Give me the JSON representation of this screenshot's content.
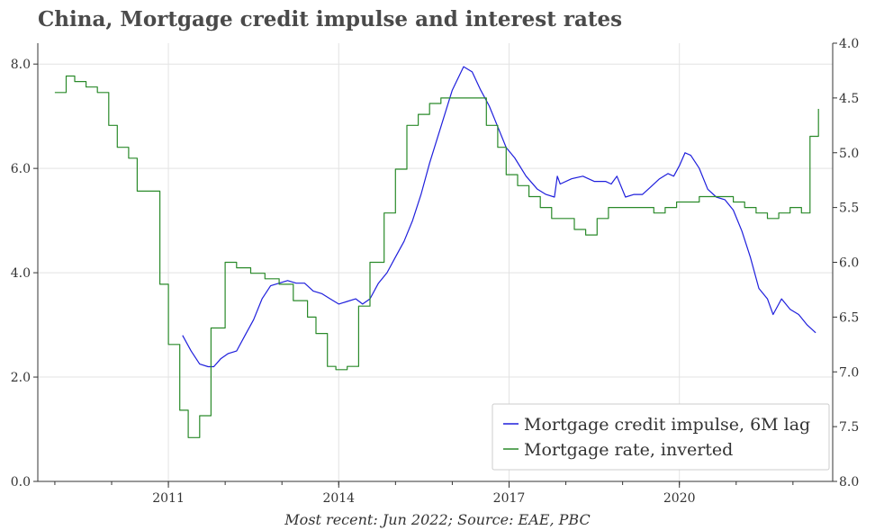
{
  "chart_data": {
    "type": "line",
    "title": "China, Mortgage credit impulse and interest rates",
    "source": "Most recent: Jun 2022; Source: EAE, PBC",
    "x_ticks": [
      "2011",
      "2014",
      "2017",
      "2020"
    ],
    "x_tick_years": [
      2011,
      2014,
      2017,
      2020
    ],
    "xlim": [
      2008.7,
      2022.7
    ],
    "y_left": {
      "ylim": [
        0,
        8.4
      ],
      "ticks": [
        0,
        2,
        4,
        6,
        8
      ],
      "tick_labels": [
        "0.0",
        "2.0",
        "4.0",
        "6.0",
        "8.0"
      ]
    },
    "y_right": {
      "ylim": [
        8.0,
        4.0
      ],
      "inverted": true,
      "ticks": [
        4.0,
        4.5,
        5.0,
        5.5,
        6.0,
        6.5,
        7.0,
        7.5,
        8.0
      ],
      "tick_labels": [
        "4.0",
        "4.5",
        "5.0",
        "5.5",
        "6.0",
        "6.5",
        "7.0",
        "7.5",
        "8.0"
      ]
    },
    "grid": true,
    "legend_position": "bottom-right",
    "series": [
      {
        "name": "Mortgage credit impulse, 6M lag",
        "axis": "left",
        "color": "#1f1fdc",
        "x": [
          2011.25,
          2011.4,
          2011.55,
          2011.7,
          2011.8,
          2011.92,
          2012.05,
          2012.2,
          2012.35,
          2012.5,
          2012.65,
          2012.8,
          2012.95,
          2013.1,
          2013.25,
          2013.4,
          2013.55,
          2013.7,
          2013.85,
          2014.0,
          2014.15,
          2014.3,
          2014.42,
          2014.55,
          2014.7,
          2014.85,
          2015.0,
          2015.15,
          2015.3,
          2015.45,
          2015.6,
          2015.8,
          2016.0,
          2016.2,
          2016.35,
          2016.5,
          2016.65,
          2016.8,
          2016.95,
          2017.1,
          2017.3,
          2017.5,
          2017.65,
          2017.8,
          2017.85,
          2017.9,
          2018.1,
          2018.3,
          2018.5,
          2018.7,
          2018.8,
          2018.9,
          2019.05,
          2019.2,
          2019.35,
          2019.5,
          2019.65,
          2019.8,
          2019.9,
          2020.0,
          2020.1,
          2020.2,
          2020.35,
          2020.5,
          2020.65,
          2020.8,
          2020.95,
          2021.1,
          2021.25,
          2021.4,
          2021.55,
          2021.65,
          2021.8,
          2021.95,
          2022.1,
          2022.25,
          2022.4
        ],
        "values": [
          2.8,
          2.5,
          2.25,
          2.2,
          2.2,
          2.35,
          2.45,
          2.5,
          2.8,
          3.1,
          3.5,
          3.75,
          3.8,
          3.85,
          3.8,
          3.8,
          3.65,
          3.6,
          3.5,
          3.4,
          3.45,
          3.5,
          3.4,
          3.5,
          3.8,
          4.0,
          4.3,
          4.6,
          5.0,
          5.5,
          6.1,
          6.8,
          7.5,
          7.95,
          7.85,
          7.5,
          7.2,
          6.8,
          6.4,
          6.2,
          5.85,
          5.6,
          5.5,
          5.45,
          5.85,
          5.7,
          5.8,
          5.85,
          5.75,
          5.75,
          5.7,
          5.85,
          5.45,
          5.5,
          5.5,
          5.65,
          5.8,
          5.9,
          5.85,
          6.05,
          6.3,
          6.25,
          6.0,
          5.6,
          5.45,
          5.4,
          5.2,
          4.8,
          4.3,
          3.7,
          3.5,
          3.2,
          3.5,
          3.3,
          3.2,
          3.0,
          2.85
        ],
        "values_note": ""
      },
      {
        "name": "Mortgage rate, inverted",
        "axis": "right",
        "color": "#2a8a2a",
        "step": true,
        "x": [
          2009.0,
          2009.2,
          2009.35,
          2009.55,
          2009.75,
          2009.95,
          2010.1,
          2010.3,
          2010.45,
          2010.65,
          2010.85,
          2011.0,
          2011.2,
          2011.35,
          2011.55,
          2011.75,
          2012.0,
          2012.2,
          2012.45,
          2012.7,
          2012.95,
          2013.2,
          2013.45,
          2013.6,
          2013.8,
          2013.95,
          2014.15,
          2014.35,
          2014.55,
          2014.8,
          2015.0,
          2015.2,
          2015.4,
          2015.6,
          2015.8,
          2016.0,
          2016.2,
          2016.4,
          2016.6,
          2016.8,
          2016.95,
          2017.15,
          2017.35,
          2017.55,
          2017.75,
          2017.95,
          2018.15,
          2018.35,
          2018.55,
          2018.75,
          2018.95,
          2019.15,
          2019.35,
          2019.55,
          2019.75,
          2019.95,
          2020.15,
          2020.35,
          2020.55,
          2020.75,
          2020.95,
          2021.15,
          2021.35,
          2021.55,
          2021.75,
          2021.95,
          2022.15,
          2022.3,
          2022.45
        ],
        "values": [
          4.45,
          4.3,
          4.35,
          4.4,
          4.45,
          4.75,
          4.95,
          5.05,
          5.35,
          5.35,
          6.2,
          6.75,
          7.35,
          7.6,
          7.4,
          6.6,
          6.0,
          6.05,
          6.1,
          6.15,
          6.2,
          6.35,
          6.5,
          6.65,
          6.95,
          6.98,
          6.95,
          6.4,
          6.0,
          5.55,
          5.15,
          4.75,
          4.65,
          4.55,
          4.5,
          4.5,
          4.5,
          4.5,
          4.75,
          4.95,
          5.2,
          5.3,
          5.4,
          5.5,
          5.6,
          5.6,
          5.7,
          5.75,
          5.6,
          5.5,
          5.5,
          5.5,
          5.5,
          5.55,
          5.5,
          5.45,
          5.45,
          5.4,
          5.4,
          5.4,
          5.45,
          5.5,
          5.55,
          5.6,
          5.55,
          5.5,
          5.55,
          4.85,
          4.6
        ]
      }
    ]
  }
}
